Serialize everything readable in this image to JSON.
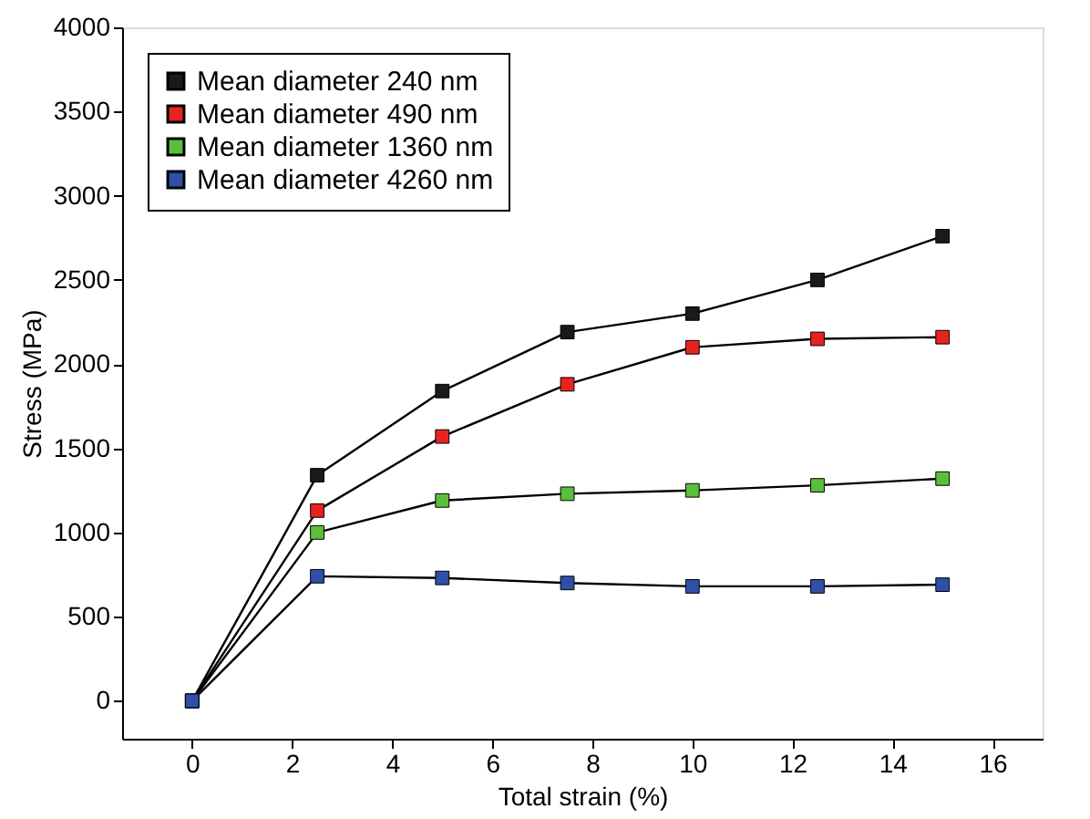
{
  "chart_data": {
    "type": "line",
    "xlabel": "Total strain (%)",
    "ylabel": "Stress (MPa)",
    "x": [
      0,
      2.5,
      5,
      7.5,
      10,
      12.5,
      15
    ],
    "series": [
      {
        "name": "Mean diameter 240 nm",
        "color": "#1a1a1a",
        "values": [
          0,
          1340,
          1840,
          2190,
          2300,
          2500,
          2760
        ]
      },
      {
        "name": "Mean diameter 490 nm",
        "color": "#e8231f",
        "values": [
          0,
          1130,
          1570,
          1880,
          2100,
          2150,
          2160
        ]
      },
      {
        "name": "Mean diameter 1360 nm",
        "color": "#5cbf3c",
        "values": [
          0,
          1000,
          1190,
          1230,
          1250,
          1280,
          1320
        ]
      },
      {
        "name": "Mean diameter 4260 nm",
        "color": "#2f4fa8",
        "values": [
          0,
          740,
          730,
          700,
          680,
          680,
          690
        ]
      }
    ],
    "xlim": [
      -1.4,
      17
    ],
    "xticks": [
      0,
      2,
      4,
      6,
      8,
      10,
      12,
      14,
      16
    ],
    "ylim": [
      -225,
      4000
    ],
    "yticks": [
      0,
      500,
      1000,
      1500,
      2000,
      2500,
      3000,
      3500,
      4000
    ],
    "marker": "square",
    "line_style": "solid",
    "grid": false,
    "legend": "top left"
  }
}
